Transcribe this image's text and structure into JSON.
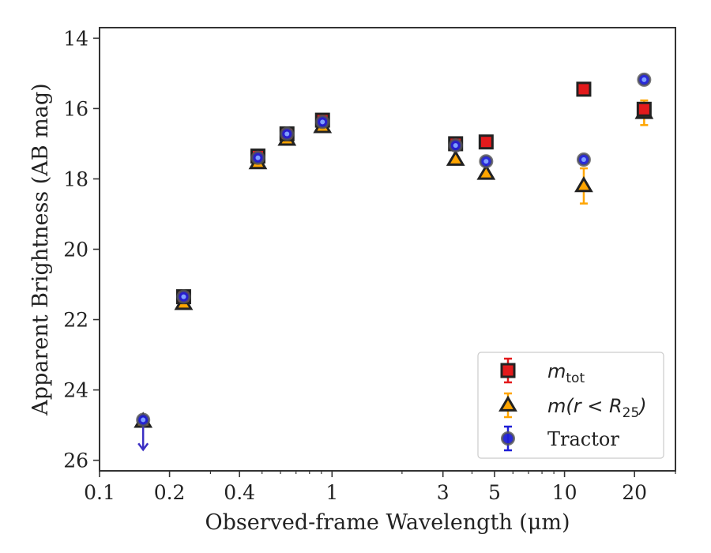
{
  "chart_data": {
    "type": "scatter",
    "xlabel": "Observed-frame Wavelength (μm)",
    "ylabel": "Apparent Brightness (AB mag)",
    "x_scale": "log",
    "xlim": [
      0.1,
      30
    ],
    "ylim": [
      26.3,
      13.7
    ],
    "y_inverted": true,
    "x_ticks": [
      0.1,
      0.2,
      0.4,
      1,
      3,
      5,
      10,
      20
    ],
    "x_tick_labels": [
      "0.1",
      "0.2",
      "0.4",
      "1",
      "3",
      "5",
      "10",
      "20"
    ],
    "y_ticks": [
      14,
      16,
      18,
      20,
      22,
      24,
      26
    ],
    "y_tick_labels": [
      "14",
      "16",
      "18",
      "20",
      "22",
      "24",
      "26"
    ],
    "grid": false,
    "legend_position": "bottom-right",
    "series": [
      {
        "name": "m_tot",
        "legend_label": {
          "main": "m",
          "sub": "tot",
          "tail": ""
        },
        "marker": "square",
        "color": "#e31a1c",
        "edge": "#222222",
        "points": [
          {
            "x": 0.23,
            "y": 21.35,
            "err": 0
          },
          {
            "x": 0.48,
            "y": 17.35,
            "err": 0
          },
          {
            "x": 0.64,
            "y": 16.72,
            "err": 0
          },
          {
            "x": 0.91,
            "y": 16.33,
            "err": 0
          },
          {
            "x": 3.4,
            "y": 17.0,
            "err": 0
          },
          {
            "x": 4.6,
            "y": 16.95,
            "err": 0
          },
          {
            "x": 12.1,
            "y": 15.45,
            "err": 0
          },
          {
            "x": 22.0,
            "y": 16.02,
            "err": 0
          }
        ]
      },
      {
        "name": "m(r < R_25)",
        "legend_label": {
          "main": "m(r < R",
          "sub": "25",
          "tail": ")"
        },
        "marker": "triangle",
        "color": "#ffa500",
        "edge": "#222222",
        "points": [
          {
            "x": 0.23,
            "y": 21.55,
            "err": 0
          },
          {
            "x": 0.48,
            "y": 17.55,
            "err": 0
          },
          {
            "x": 0.64,
            "y": 16.88,
            "err": 0
          },
          {
            "x": 0.91,
            "y": 16.52,
            "err": 0
          },
          {
            "x": 3.4,
            "y": 17.45,
            "err": 0
          },
          {
            "x": 4.6,
            "y": 17.85,
            "err": 0
          },
          {
            "x": 12.1,
            "y": 18.2,
            "err": 0.5
          },
          {
            "x": 22.0,
            "y": 16.12,
            "err": 0.35
          },
          {
            "x": 0.154,
            "y": 24.9,
            "err": 0
          }
        ]
      },
      {
        "name": "Tractor",
        "legend_label": {
          "main": "Tractor",
          "sub": "",
          "tail": ""
        },
        "marker": "circle",
        "color": "#1f1fd6",
        "edge": "#555555",
        "points": [
          {
            "x": 0.154,
            "y": 24.85,
            "err": 0,
            "upper_limit": true
          },
          {
            "x": 0.23,
            "y": 21.35,
            "err": 0
          },
          {
            "x": 0.48,
            "y": 17.4,
            "err": 0
          },
          {
            "x": 0.64,
            "y": 16.72,
            "err": 0
          },
          {
            "x": 0.91,
            "y": 16.38,
            "err": 0
          },
          {
            "x": 3.4,
            "y": 17.05,
            "err": 0
          },
          {
            "x": 4.6,
            "y": 17.5,
            "err": 0
          },
          {
            "x": 12.1,
            "y": 17.45,
            "err": 0
          },
          {
            "x": 22.0,
            "y": 15.18,
            "err": 0
          }
        ]
      }
    ]
  }
}
